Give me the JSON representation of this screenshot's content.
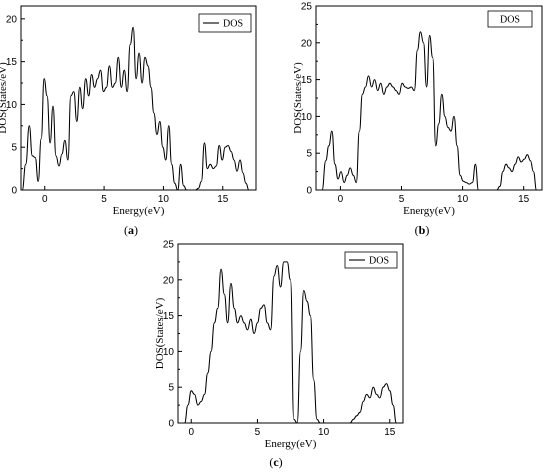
{
  "chart_data": [
    {
      "type": "line",
      "panel_label": "(a)",
      "xlabel": "Energy(eV)",
      "ylabel": "DOS(States/eV)",
      "xlim": [
        -2,
        17.8
      ],
      "ylim": [
        0,
        21.5
      ],
      "xticks": [
        0,
        5,
        10,
        15
      ],
      "yticks": [
        0,
        5,
        10,
        15,
        20
      ],
      "legend": "top-right",
      "series": [
        {
          "name": "DOS",
          "x": [
            -1.9,
            -1.6,
            -1.3,
            -1.05,
            -0.8,
            -0.55,
            -0.3,
            -0.05,
            0.2,
            0.45,
            0.7,
            0.95,
            1.2,
            1.45,
            1.7,
            1.95,
            2.2,
            2.45,
            2.7,
            2.95,
            3.2,
            3.45,
            3.7,
            3.95,
            4.2,
            4.45,
            4.7,
            4.95,
            5.2,
            5.45,
            5.7,
            5.95,
            6.2,
            6.45,
            6.7,
            6.95,
            7.2,
            7.45,
            7.7,
            7.95,
            8.2,
            8.45,
            8.7,
            8.95,
            9.2,
            9.45,
            9.7,
            9.95,
            10.2,
            10.45,
            10.7,
            10.95,
            11.2,
            11.45,
            11.7,
            11.95,
            12.2,
            12.45,
            12.7,
            12.95,
            13.2,
            13.45,
            13.7,
            13.95,
            14.2,
            14.45,
            14.7,
            14.95,
            15.2,
            15.45,
            15.7,
            15.95,
            16.2,
            16.45,
            16.7,
            16.95,
            17.2
          ],
          "values": [
            0,
            3,
            7.5,
            4,
            3.8,
            1,
            6,
            13,
            11,
            5.5,
            9.8,
            4,
            2.8,
            4.2,
            5.8,
            3.5,
            11,
            11.5,
            8,
            12,
            9.5,
            13,
            11,
            13.5,
            12,
            13,
            14,
            11.5,
            12,
            14.5,
            12,
            12.5,
            15.5,
            12,
            14,
            11.5,
            17,
            19,
            13,
            16,
            12.5,
            15.5,
            14.5,
            12,
            9,
            6.5,
            8,
            5,
            3.5,
            7.5,
            3,
            0.8,
            0,
            3,
            0.5,
            0,
            0,
            0,
            0,
            0.2,
            1,
            5.5,
            2.5,
            3,
            2.5,
            2.8,
            5.2,
            3.5,
            5,
            5.2,
            4.5,
            3.5,
            2.2,
            3.5,
            2,
            0.8,
            0
          ]
        }
      ]
    },
    {
      "type": "line",
      "panel_label": "(b)",
      "xlabel": "Energy(eV)",
      "ylabel": "DOS(States/eV)",
      "xlim": [
        -2,
        16.5
      ],
      "ylim": [
        0,
        25
      ],
      "xticks": [
        0,
        5,
        10,
        15
      ],
      "yticks": [
        0,
        5,
        10,
        15,
        20,
        25
      ],
      "legend": "top-right",
      "series": [
        {
          "name": "DOS",
          "x": [
            -1.5,
            -1.2,
            -0.95,
            -0.7,
            -0.45,
            -0.2,
            0.05,
            0.3,
            0.55,
            0.8,
            1.05,
            1.3,
            1.55,
            1.8,
            2.05,
            2.3,
            2.55,
            2.8,
            3.05,
            3.3,
            3.55,
            3.8,
            4.05,
            4.3,
            4.55,
            4.8,
            5.05,
            5.3,
            5.55,
            5.8,
            6.05,
            6.3,
            6.55,
            6.8,
            7.05,
            7.3,
            7.55,
            7.8,
            8.05,
            8.3,
            8.55,
            8.8,
            9.05,
            9.3,
            9.55,
            9.8,
            10.05,
            10.3,
            10.55,
            10.8,
            11.05,
            11.3,
            11.55,
            11.8,
            12.05,
            12.3,
            12.55,
            12.8,
            13.05,
            13.3,
            13.55,
            13.8,
            14.05,
            14.3,
            14.55,
            14.8,
            15.05,
            15.3,
            15.55,
            15.8,
            16.05
          ],
          "values": [
            0,
            4,
            6,
            8,
            3.5,
            1.5,
            2.5,
            1,
            2,
            3,
            2,
            1,
            8,
            13,
            14,
            15.5,
            14,
            15,
            13.5,
            14.5,
            13,
            14,
            14.5,
            14,
            13.5,
            13,
            14.5,
            14,
            13.8,
            14,
            13.5,
            19,
            21.5,
            20,
            14,
            21,
            18,
            6,
            9,
            13,
            10,
            8.5,
            8,
            10,
            6,
            2,
            1.2,
            1,
            0.8,
            1,
            3.5,
            0,
            0,
            0,
            0,
            0,
            0,
            0,
            0.5,
            2.5,
            3.5,
            3,
            2.5,
            3.5,
            4.5,
            3.8,
            4.2,
            4.8,
            4,
            2.5,
            0
          ]
        }
      ]
    },
    {
      "type": "line",
      "panel_label": "(c)",
      "xlabel": "Energy(eV)",
      "ylabel": "DOS(States/eV)",
      "xlim": [
        -1,
        16
      ],
      "ylim": [
        0,
        25
      ],
      "xticks": [
        0,
        5,
        10,
        15
      ],
      "yticks": [
        0,
        5,
        10,
        15,
        20,
        25
      ],
      "legend": "top-right",
      "series": [
        {
          "name": "DOS",
          "x": [
            -0.5,
            -0.25,
            0,
            0.25,
            0.5,
            0.75,
            1,
            1.25,
            1.5,
            1.75,
            2,
            2.25,
            2.5,
            2.75,
            3,
            3.25,
            3.5,
            3.75,
            4,
            4.25,
            4.5,
            4.75,
            5,
            5.25,
            5.5,
            5.75,
            6,
            6.25,
            6.5,
            6.75,
            7,
            7.25,
            7.5,
            7.75,
            8,
            8.25,
            8.5,
            8.75,
            9,
            9.25,
            9.5,
            9.75,
            10,
            10.25,
            10.5,
            10.75,
            11,
            11.25,
            11.5,
            11.75,
            12,
            12.25,
            12.5,
            12.75,
            13,
            13.25,
            13.5,
            13.75,
            14,
            14.25,
            14.5,
            14.75,
            15,
            15.25,
            15.5
          ],
          "values": [
            0,
            2.5,
            4.5,
            4,
            2.5,
            3,
            4,
            7,
            10,
            14,
            16,
            21.5,
            18,
            14,
            19.5,
            16,
            14,
            15,
            14,
            13,
            14.5,
            12.5,
            14,
            16,
            16.5,
            14,
            13,
            20.5,
            22,
            19,
            22.5,
            22.5,
            20,
            0.5,
            0,
            10,
            18.5,
            17,
            15,
            6,
            0.5,
            0,
            0,
            0,
            0,
            0,
            0,
            0,
            0,
            0,
            0,
            0.5,
            1,
            1.5,
            3,
            4,
            3.5,
            5,
            4,
            3.5,
            5,
            5.5,
            4.5,
            2.5,
            0
          ]
        }
      ]
    }
  ]
}
